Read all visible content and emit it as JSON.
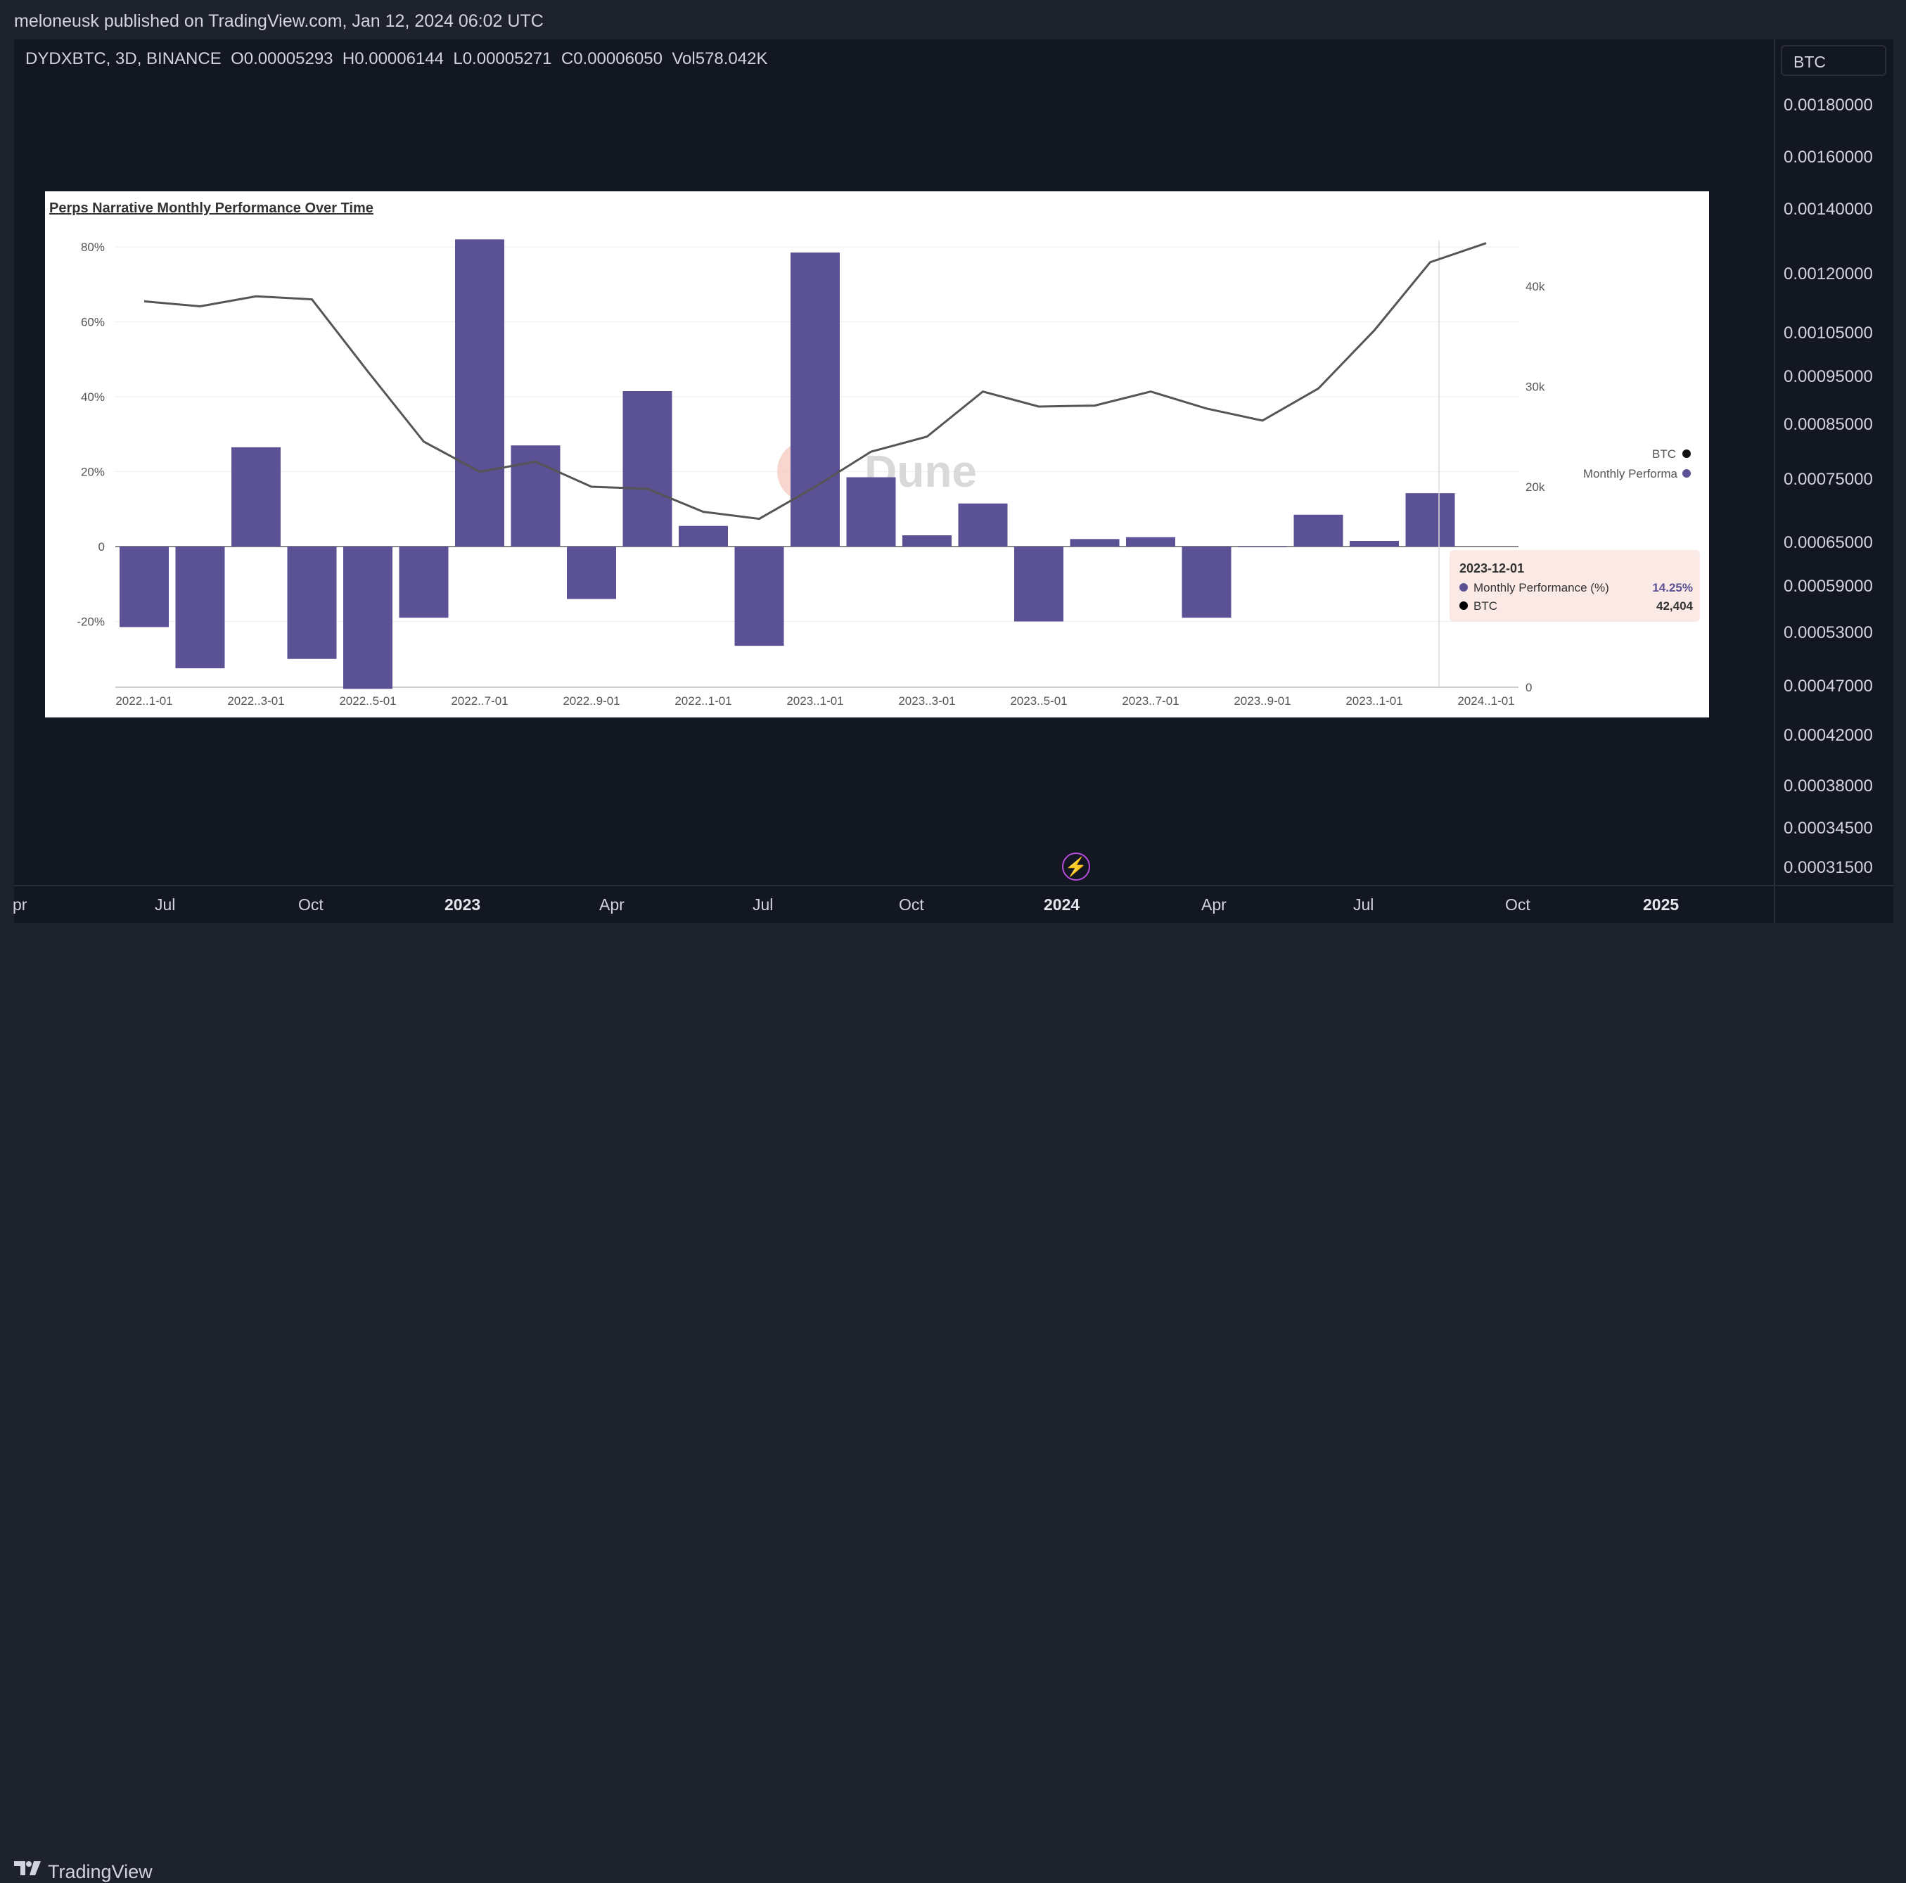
{
  "header": {
    "publisher": "meloneusk published on TradingView.com, Jan 12, 2024 06:02 UTC"
  },
  "legend": {
    "symbol": "DYDXBTC, 3D, BINANCE",
    "open": "O0.00005293",
    "high": "H0.00006144",
    "low": "L0.00005271",
    "close": "C0.00006050",
    "volume": "Vol578.042K"
  },
  "price_scale": {
    "currency": "BTC",
    "labels": [
      "0.00180000",
      "0.00160000",
      "0.00140000",
      "0.00120000",
      "0.00105000",
      "0.00095000",
      "0.00085000",
      "0.00075000",
      "0.00065000",
      "0.00059000",
      "0.00053000",
      "0.00047000",
      "0.00042000",
      "0.00038000",
      "0.00034500",
      "0.00031500"
    ]
  },
  "time_axis": {
    "labels": [
      {
        "text": "pr",
        "bold": false
      },
      {
        "text": "Jul",
        "bold": false
      },
      {
        "text": "Oct",
        "bold": false
      },
      {
        "text": "2023",
        "bold": true
      },
      {
        "text": "Apr",
        "bold": false
      },
      {
        "text": "Jul",
        "bold": false
      },
      {
        "text": "Oct",
        "bold": false
      },
      {
        "text": "2024",
        "bold": true
      },
      {
        "text": "Apr",
        "bold": false
      },
      {
        "text": "Jul",
        "bold": false
      },
      {
        "text": "Oct",
        "bold": false
      },
      {
        "text": "2025",
        "bold": true
      }
    ]
  },
  "footer": {
    "brand": "TradingView"
  },
  "colors": {
    "bar": "#5a5294",
    "line": "#555555",
    "background": "#131722",
    "accent": "#b84ce0"
  },
  "chart_data": {
    "type": "bar",
    "title": "Perps Narrative Monthly Performance Over Time",
    "watermark": "Dune",
    "x_tick_labels": [
      "2022..1-01",
      "2022..3-01",
      "2022..5-01",
      "2022..7-01",
      "2022..9-01",
      "2022..1-01",
      "2023..1-01",
      "2023..3-01",
      "2023..5-01",
      "2023..7-01",
      "2023..9-01",
      "2023..1-01",
      "2024..1-01"
    ],
    "y_left": {
      "ticks": [
        "80%",
        "60%",
        "40%",
        "20%",
        "0",
        "-20%"
      ],
      "range": [
        -38,
        82
      ]
    },
    "y_right": {
      "ticks": [
        "40k",
        "30k",
        "20k",
        "0"
      ],
      "range": [
        0,
        44000
      ]
    },
    "legend": [
      "BTC",
      "Monthly Performa"
    ],
    "categories": [
      "2022-01",
      "2022-02",
      "2022-03",
      "2022-04",
      "2022-05",
      "2022-06",
      "2022-07",
      "2022-08",
      "2022-09",
      "2022-10",
      "2022-11",
      "2022-12",
      "2023-01",
      "2023-02",
      "2023-03",
      "2023-04",
      "2023-05",
      "2023-06",
      "2023-07",
      "2023-08",
      "2023-09",
      "2023-10",
      "2023-11",
      "2023-12",
      "2024-01"
    ],
    "series": [
      {
        "name": "Monthly Performance (%)",
        "type": "bar",
        "values": [
          -21.5,
          -32.5,
          26.5,
          -30,
          -38,
          -19,
          82,
          27,
          -14,
          41.5,
          5.5,
          -26.5,
          78.5,
          18.5,
          3,
          11.5,
          -20,
          2,
          2.5,
          -19,
          0,
          8.5,
          1.5,
          14.25,
          null
        ]
      },
      {
        "name": "BTC",
        "type": "line",
        "values": [
          38500,
          38000,
          39000,
          38700,
          31500,
          24500,
          21500,
          22500,
          20000,
          19800,
          17500,
          16800,
          20000,
          23500,
          25000,
          29500,
          28000,
          28100,
          29500,
          27800,
          26600,
          29800,
          35600,
          42404,
          44300
        ]
      }
    ],
    "tooltip": {
      "date": "2023-12-01",
      "rows": [
        {
          "label": "Monthly Performance (%)",
          "value": "14.25%",
          "color": "#5a5294"
        },
        {
          "label": "BTC",
          "value": "42,404",
          "color": "#000000"
        }
      ]
    }
  }
}
